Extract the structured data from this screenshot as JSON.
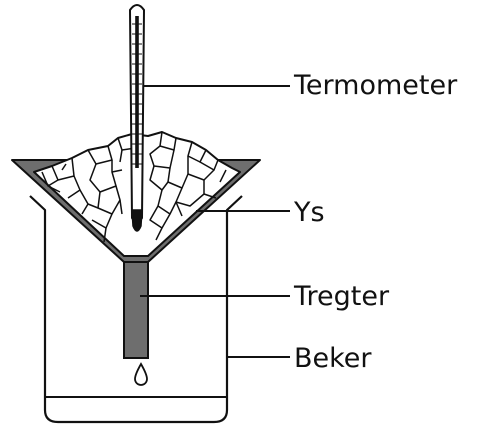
{
  "labels": {
    "thermometer": "Termometer",
    "ice": "Ys",
    "funnel": "Tregter",
    "beaker": "Beker"
  },
  "colors": {
    "line": "#111111",
    "funnel_fill": "#6e6e6e",
    "ice_fill": "#ffffff",
    "background": "#ffffff"
  }
}
